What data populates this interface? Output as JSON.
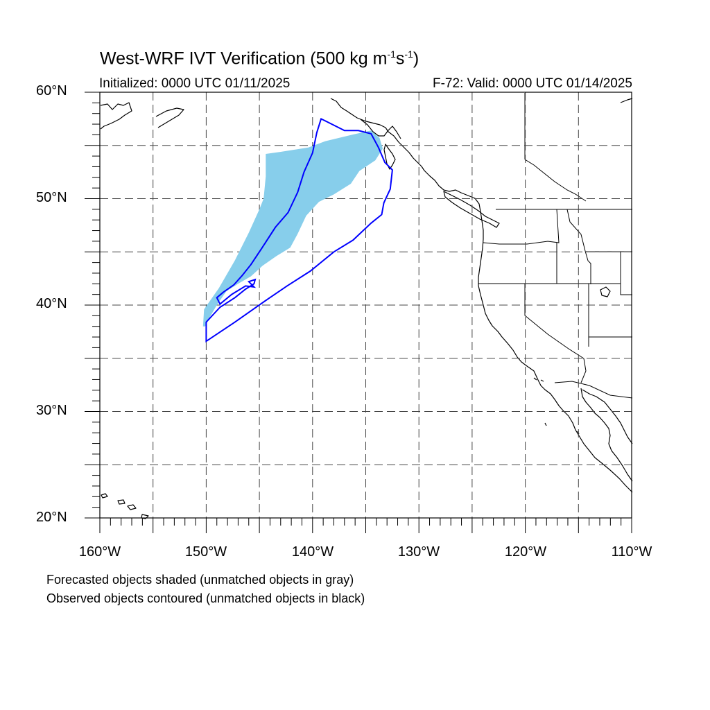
{
  "title": {
    "main": "West-WRF IVT Verification (500 kg m",
    "exp1": "-1",
    "mid": "s",
    "exp2": "-1",
    "end": ")"
  },
  "subtitle_left": "Initialized: 0000 UTC 01/11/2025",
  "subtitle_right": "F-72: Valid: 0000 UTC 01/14/2025",
  "lat_labels": [
    "60°N",
    "50°N",
    "40°N",
    "30°N",
    "20°N"
  ],
  "lon_labels": [
    "160°W",
    "150°W",
    "140°W",
    "130°W",
    "120°W",
    "110°W"
  ],
  "notes": [
    "Forecasted objects shaded (unmatched objects in gray)",
    "Observed objects contoured (unmatched objects in black)"
  ],
  "map": {
    "lon_range": [
      -160,
      -110
    ],
    "lat_range": [
      20,
      60
    ],
    "grid_interval_deg": 5,
    "forecast_color": "#87ceeb",
    "observed_color": "#0000ff",
    "forecast_object_lonlat": [
      [
        -150.3,
        38.0
      ],
      [
        -150.2,
        39.6
      ],
      [
        -148.8,
        41.6
      ],
      [
        -147.3,
        44.2
      ],
      [
        -146.0,
        46.8
      ],
      [
        -145.0,
        49.0
      ],
      [
        -144.6,
        50.0
      ],
      [
        -144.4,
        52.1
      ],
      [
        -144.4,
        54.2
      ],
      [
        -143.0,
        54.4
      ],
      [
        -140.4,
        54.8
      ],
      [
        -138.8,
        55.4
      ],
      [
        -136.3,
        56.0
      ],
      [
        -134.5,
        56.4
      ],
      [
        -133.7,
        55.7
      ],
      [
        -133.4,
        54.7
      ],
      [
        -134.1,
        53.6
      ],
      [
        -135.6,
        52.6
      ],
      [
        -136.4,
        51.4
      ],
      [
        -138.0,
        50.4
      ],
      [
        -139.4,
        49.7
      ],
      [
        -140.6,
        48.4
      ],
      [
        -141.4,
        46.7
      ],
      [
        -142.1,
        45.4
      ],
      [
        -143.4,
        44.6
      ],
      [
        -144.7,
        43.7
      ],
      [
        -145.8,
        42.7
      ],
      [
        -147.0,
        42.0
      ],
      [
        -148.1,
        41.3
      ],
      [
        -149.0,
        40.0
      ],
      [
        -149.7,
        38.8
      ],
      [
        -150.1,
        38.0
      ]
    ],
    "observed_object_lonlat": [
      [
        -150.0,
        36.6
      ],
      [
        -147.3,
        38.4
      ],
      [
        -144.3,
        40.5
      ],
      [
        -142.4,
        41.8
      ],
      [
        -140.2,
        43.2
      ],
      [
        -138.0,
        45.0
      ],
      [
        -136.2,
        46.1
      ],
      [
        -134.5,
        47.7
      ],
      [
        -133.5,
        48.5
      ],
      [
        -133.3,
        49.6
      ],
      [
        -132.7,
        50.9
      ],
      [
        -132.5,
        52.7
      ],
      [
        -133.2,
        53.4
      ],
      [
        -133.8,
        54.8
      ],
      [
        -134.5,
        56.1
      ],
      [
        -135.7,
        56.4
      ],
      [
        -137.0,
        56.4
      ],
      [
        -138.8,
        57.3
      ],
      [
        -139.2,
        57.5
      ],
      [
        -139.6,
        56.2
      ],
      [
        -140.0,
        54.3
      ],
      [
        -140.8,
        52.5
      ],
      [
        -141.4,
        50.6
      ],
      [
        -142.3,
        48.7
      ],
      [
        -143.5,
        47.3
      ],
      [
        -144.8,
        45.3
      ],
      [
        -145.8,
        43.8
      ],
      [
        -146.6,
        42.8
      ],
      [
        -147.4,
        41.9
      ],
      [
        -148.4,
        41.2
      ],
      [
        -149.0,
        40.7
      ],
      [
        -148.7,
        40.1
      ],
      [
        -147.6,
        41.0
      ],
      [
        -146.3,
        41.8
      ],
      [
        -145.5,
        41.7
      ],
      [
        -146.0,
        42.2
      ],
      [
        -145.4,
        42.4
      ],
      [
        -145.5,
        42.0
      ],
      [
        -146.3,
        41.5
      ],
      [
        -147.3,
        40.7
      ],
      [
        -148.7,
        39.8
      ],
      [
        -150.0,
        38.4
      ]
    ]
  }
}
